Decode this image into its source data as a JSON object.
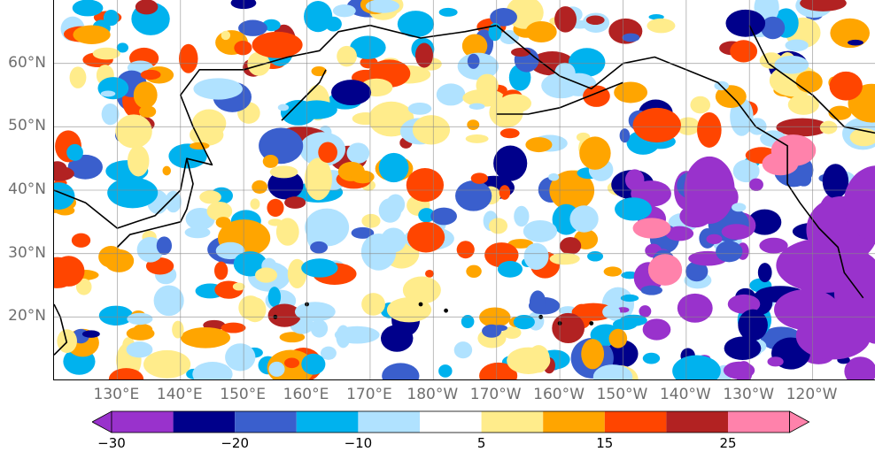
{
  "map": {
    "lat_labels": [
      "60°N",
      "50°N",
      "40°N",
      "30°N",
      "20°N"
    ],
    "lon_labels": [
      "130°E",
      "140°E",
      "150°E",
      "160°E",
      "170°E",
      "180°W",
      "170°W",
      "160°W",
      "150°W",
      "140°W",
      "130°W",
      "120°W"
    ],
    "extent": {
      "lon_min": 120,
      "lon_max": 250,
      "lat_min": 10,
      "lat_max": 70
    },
    "grid": true,
    "coastlines": true
  },
  "colorbar": {
    "tick_labels": [
      "−30",
      "−20",
      "−10",
      "5",
      "15",
      "25"
    ],
    "levels": [
      -30,
      -25,
      -20,
      -15,
      -10,
      -5,
      5,
      10,
      15,
      20,
      25,
      30
    ],
    "colors": [
      "#9932cc",
      "#00008b",
      "#3a5fcd",
      "#00b2ee",
      "#b0e2ff",
      "#ffffff",
      "#ffec8b",
      "#ffa500",
      "#ff4500",
      "#b22222",
      "#ff82ab"
    ],
    "extend": "both"
  }
}
